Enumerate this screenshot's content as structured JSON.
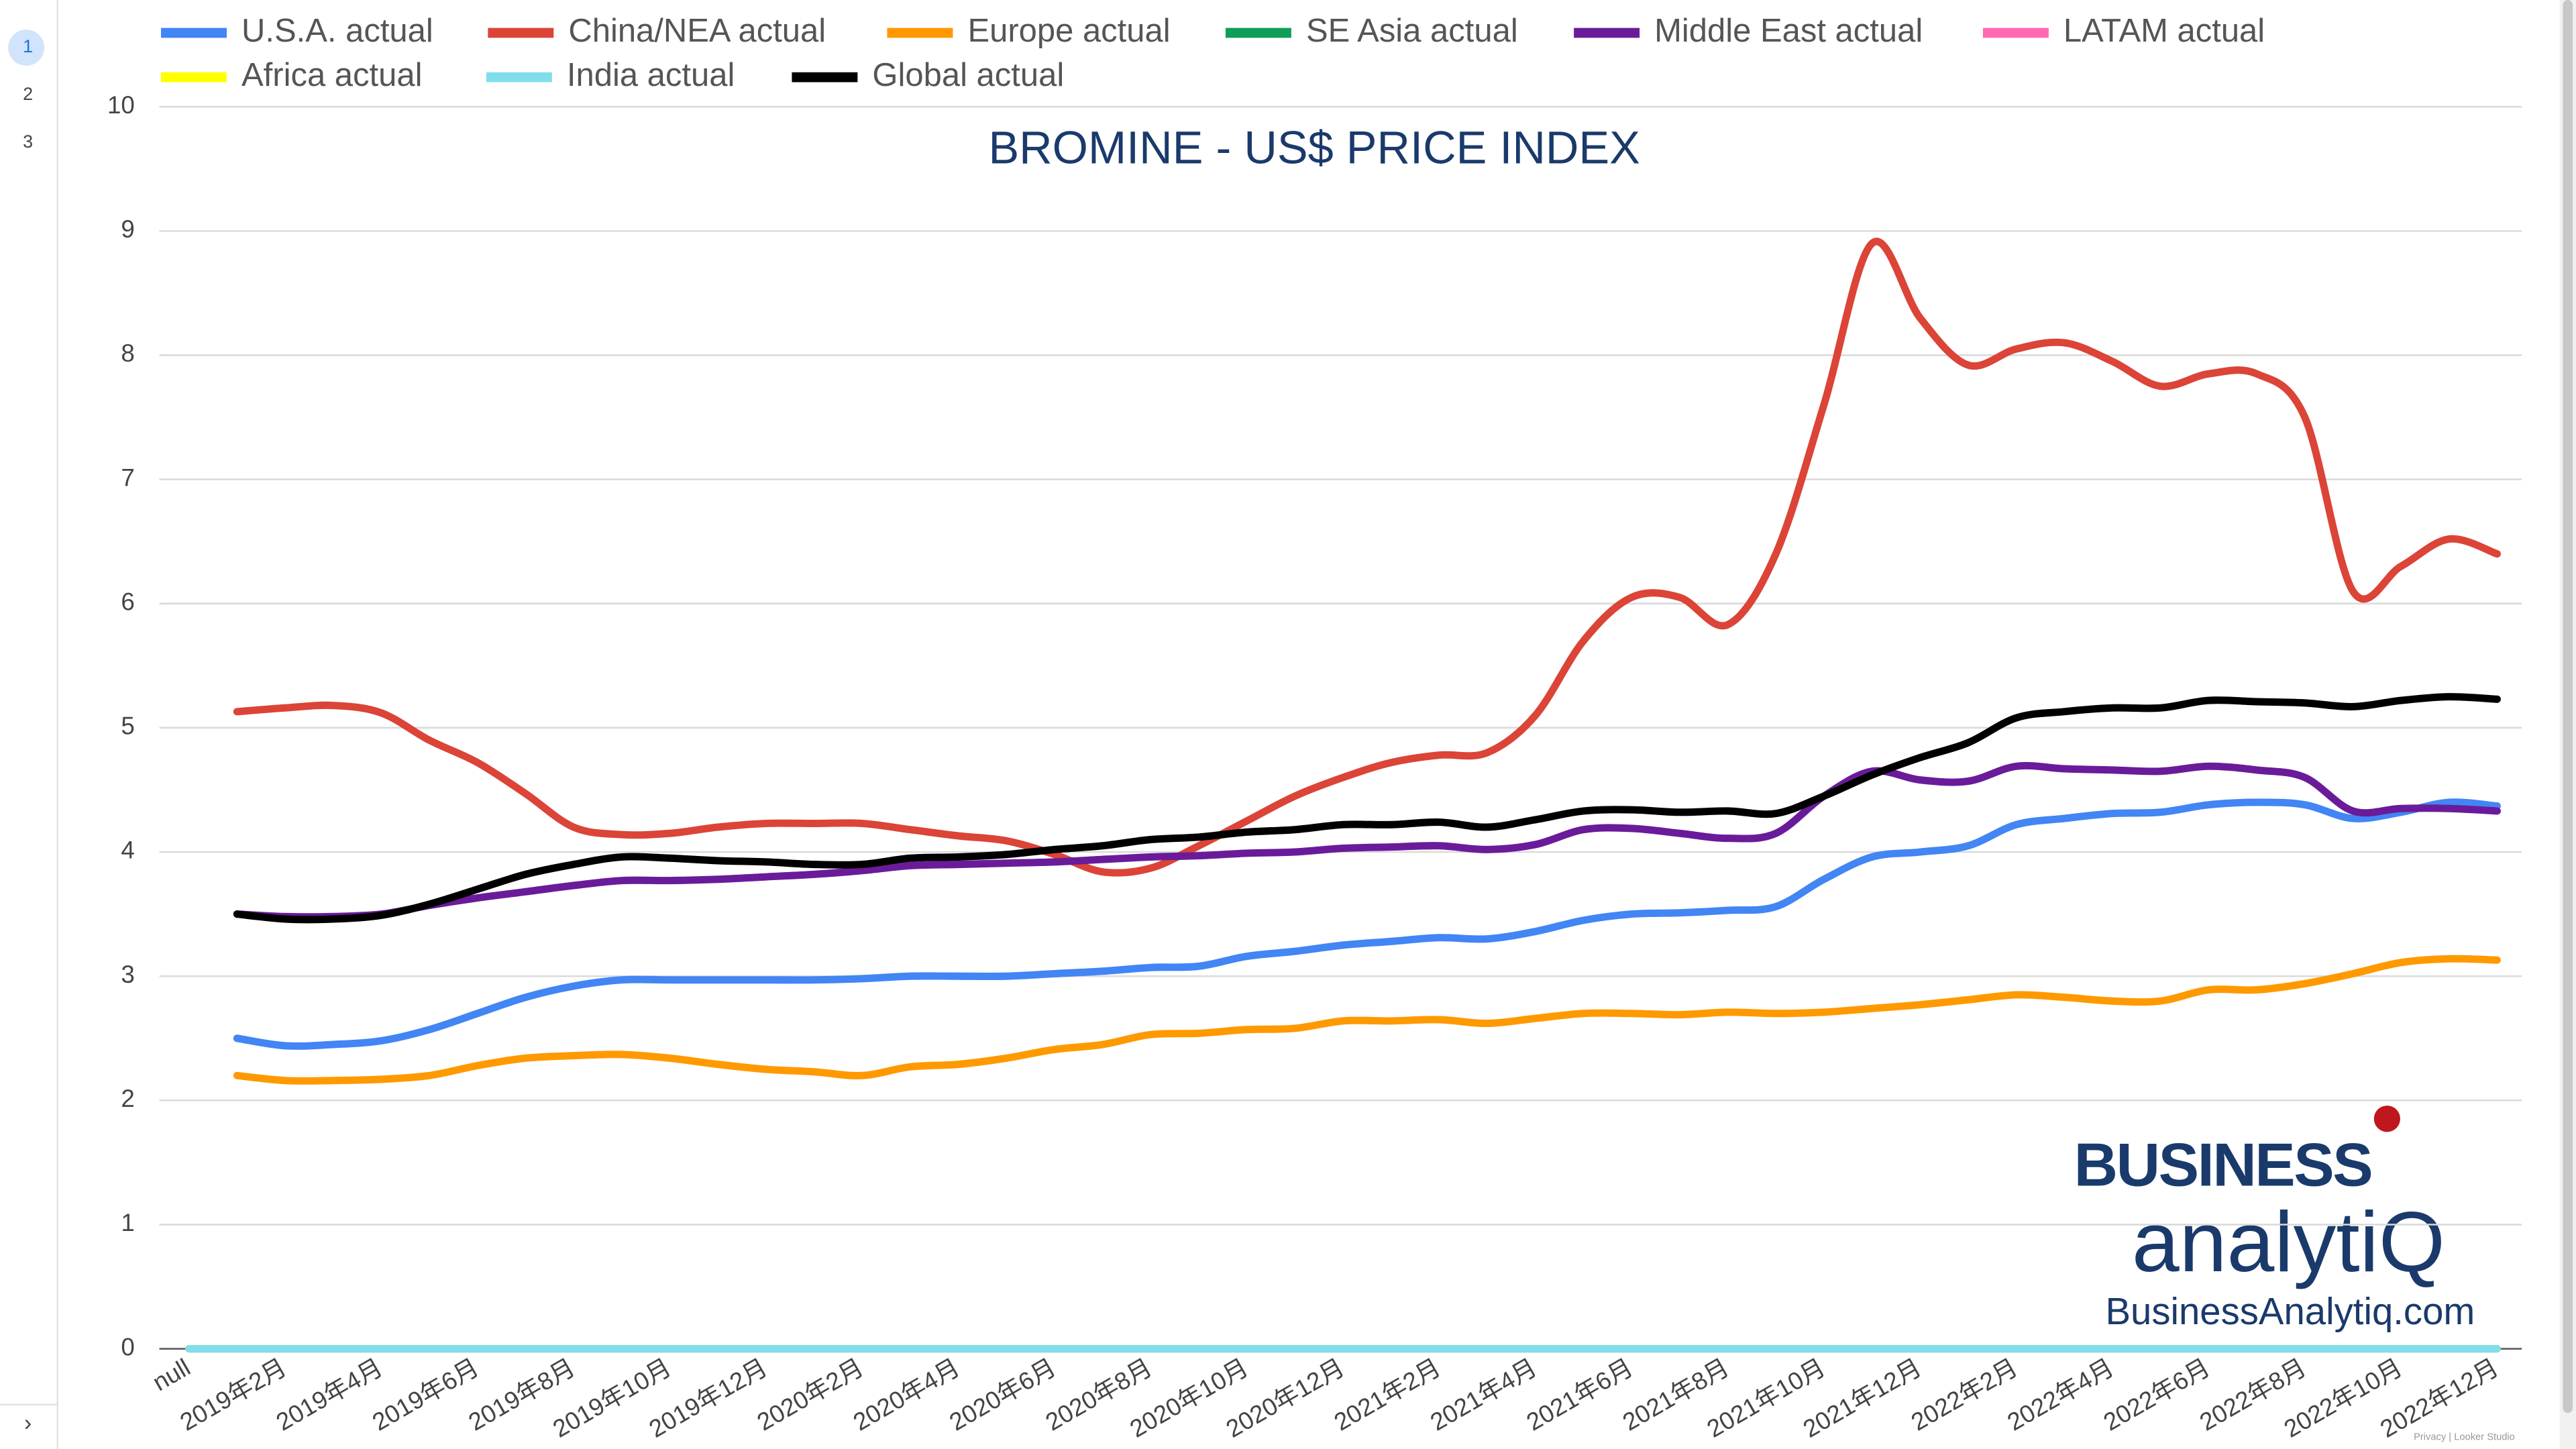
{
  "pages": [
    "1",
    "2",
    "3"
  ],
  "nav_arrow": "›",
  "footer": "Privacy | Looker Studio",
  "logo": {
    "line1": "BUSINESS",
    "line2": "analytiQ",
    "url": "BusinessAnalytiq.com"
  },
  "chart_data": {
    "type": "line",
    "title": "BROMINE - US$ PRICE INDEX",
    "categories": [
      "null",
      null,
      "2019年2月",
      null,
      "2019年4月",
      null,
      "2019年6月",
      null,
      "2019年8月",
      null,
      "2019年10月",
      null,
      "2019年12月",
      null,
      "2020年2月",
      null,
      "2020年4月",
      null,
      "2020年6月",
      null,
      "2020年8月",
      null,
      "2020年10月",
      null,
      "2020年12月",
      null,
      "2021年2月",
      null,
      "2021年4月",
      null,
      "2021年6月",
      null,
      "2021年8月",
      null,
      "2021年10月",
      null,
      "2021年12月",
      null,
      "2022年2月",
      null,
      "2022年4月",
      null,
      "2022年6月",
      null,
      "2022年8月",
      null,
      "2022年10月",
      null,
      "2022年12月"
    ],
    "ylim": [
      0,
      10
    ],
    "yticks": [
      0,
      1,
      2,
      3,
      4,
      5,
      6,
      7,
      8,
      9,
      10
    ],
    "grid": true,
    "legend": "top",
    "series": [
      {
        "name": "U.S.A. actual",
        "color": "#4285f4",
        "values": [
          null,
          2.5,
          2.44,
          2.45,
          2.48,
          2.57,
          2.7,
          2.83,
          2.92,
          2.97,
          2.97,
          2.97,
          2.97,
          2.97,
          2.98,
          3.0,
          3.0,
          3.0,
          3.02,
          3.04,
          3.07,
          3.08,
          3.16,
          3.2,
          3.25,
          3.28,
          3.31,
          3.3,
          3.36,
          3.45,
          3.5,
          3.51,
          3.53,
          3.56,
          3.78,
          3.96,
          4.0,
          4.05,
          4.22,
          4.27,
          4.31,
          4.32,
          4.38,
          4.4,
          4.38,
          4.27,
          4.32,
          4.4,
          4.37
        ]
      },
      {
        "name": "China/NEA actual",
        "color": "#db4437",
        "values": [
          null,
          5.13,
          5.16,
          5.18,
          5.12,
          4.9,
          4.72,
          4.47,
          4.2,
          4.14,
          4.15,
          4.2,
          4.23,
          4.23,
          4.23,
          4.18,
          4.13,
          4.09,
          3.98,
          3.84,
          3.87,
          4.05,
          4.25,
          4.45,
          4.6,
          4.72,
          4.78,
          4.8,
          5.1,
          5.7,
          6.05,
          6.05,
          5.83,
          6.4,
          7.6,
          8.9,
          8.3,
          7.92,
          8.05,
          8.1,
          7.95,
          7.75,
          7.85,
          7.85,
          7.5,
          6.1,
          6.3,
          6.52,
          6.4
        ]
      },
      {
        "name": "Europe actual",
        "color": "#ff9900",
        "values": [
          null,
          2.2,
          2.16,
          2.16,
          2.17,
          2.2,
          2.28,
          2.34,
          2.36,
          2.37,
          2.34,
          2.29,
          2.25,
          2.23,
          2.2,
          2.27,
          2.29,
          2.34,
          2.41,
          2.45,
          2.53,
          2.54,
          2.57,
          2.58,
          2.64,
          2.64,
          2.65,
          2.62,
          2.66,
          2.7,
          2.7,
          2.69,
          2.71,
          2.7,
          2.71,
          2.74,
          2.77,
          2.81,
          2.85,
          2.83,
          2.8,
          2.8,
          2.89,
          2.89,
          2.94,
          3.02,
          3.11,
          3.14,
          3.13
        ]
      },
      {
        "name": "SE Asia actual",
        "color": "#0f9d58",
        "values": [
          0,
          0,
          0,
          0,
          0,
          0,
          0,
          0,
          0,
          0,
          0,
          0,
          0,
          0,
          0,
          0,
          0,
          0,
          0,
          0,
          0,
          0,
          0,
          0,
          0,
          0,
          0,
          0,
          0,
          0,
          0,
          0,
          0,
          0,
          0,
          0,
          0,
          0,
          0,
          0,
          0,
          0,
          0,
          0,
          0,
          0,
          0,
          0,
          0
        ]
      },
      {
        "name": "Middle East actual",
        "color": "#6a1b9a",
        "values": [
          null,
          3.5,
          3.48,
          3.48,
          3.5,
          3.57,
          3.63,
          3.68,
          3.73,
          3.77,
          3.77,
          3.78,
          3.8,
          3.82,
          3.85,
          3.89,
          3.9,
          3.91,
          3.92,
          3.94,
          3.96,
          3.97,
          3.99,
          4.0,
          4.03,
          4.04,
          4.05,
          4.02,
          4.06,
          4.18,
          4.19,
          4.15,
          4.11,
          4.15,
          4.45,
          4.65,
          4.58,
          4.57,
          4.69,
          4.67,
          4.66,
          4.65,
          4.69,
          4.66,
          4.6,
          4.33,
          4.35,
          4.35,
          4.33
        ]
      },
      {
        "name": "LATAM actual",
        "color": "#ff69b4",
        "values": [
          0,
          0,
          0,
          0,
          0,
          0,
          0,
          0,
          0,
          0,
          0,
          0,
          0,
          0,
          0,
          0,
          0,
          0,
          0,
          0,
          0,
          0,
          0,
          0,
          0,
          0,
          0,
          0,
          0,
          0,
          0,
          0,
          0,
          0,
          0,
          0,
          0,
          0,
          0,
          0,
          0,
          0,
          0,
          0,
          0,
          0,
          0,
          0,
          0
        ]
      },
      {
        "name": "Africa actual",
        "color": "#ffff00",
        "values": [
          0,
          0,
          0,
          0,
          0,
          0,
          0,
          0,
          0,
          0,
          0,
          0,
          0,
          0,
          0,
          0,
          0,
          0,
          0,
          0,
          0,
          0,
          0,
          0,
          0,
          0,
          0,
          0,
          0,
          0,
          0,
          0,
          0,
          0,
          0,
          0,
          0,
          0,
          0,
          0,
          0,
          0,
          0,
          0,
          0,
          0,
          0,
          0,
          0
        ]
      },
      {
        "name": "India actual",
        "color": "#80deea",
        "values": [
          0,
          0,
          0,
          0,
          0,
          0,
          0,
          0,
          0,
          0,
          0,
          0,
          0,
          0,
          0,
          0,
          0,
          0,
          0,
          0,
          0,
          0,
          0,
          0,
          0,
          0,
          0,
          0,
          0,
          0,
          0,
          0,
          0,
          0,
          0,
          0,
          0,
          0,
          0,
          0,
          0,
          0,
          0,
          0,
          0,
          0,
          0,
          0,
          0
        ]
      },
      {
        "name": "Global actual",
        "color": "#000000",
        "values": [
          null,
          3.5,
          3.46,
          3.46,
          3.49,
          3.58,
          3.7,
          3.82,
          3.9,
          3.96,
          3.95,
          3.93,
          3.92,
          3.9,
          3.9,
          3.95,
          3.96,
          3.98,
          4.02,
          4.05,
          4.1,
          4.12,
          4.16,
          4.18,
          4.22,
          4.22,
          4.24,
          4.2,
          4.26,
          4.33,
          4.34,
          4.32,
          4.33,
          4.31,
          4.45,
          4.62,
          4.76,
          4.88,
          5.08,
          5.13,
          5.16,
          5.16,
          5.22,
          5.21,
          5.2,
          5.17,
          5.22,
          5.25,
          5.23
        ]
      }
    ]
  }
}
